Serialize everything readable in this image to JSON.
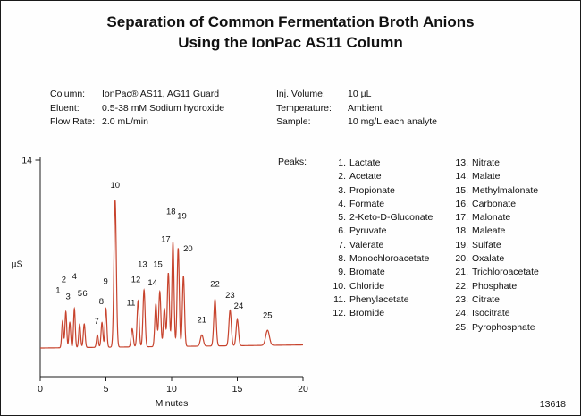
{
  "title": {
    "line1": "Separation of Common Fermentation Broth Anions",
    "line2": "Using the IonPac AS11 Column"
  },
  "conditions": {
    "left": [
      {
        "label": "Column:",
        "value": "IonPac® AS11, AG11 Guard"
      },
      {
        "label": "Eluent:",
        "value": "0.5-38 mM Sodium hydroxide"
      },
      {
        "label": "Flow Rate:",
        "value": "2.0 mL/min"
      }
    ],
    "right": [
      {
        "label": "Inj. Volume:",
        "value": "10 µL"
      },
      {
        "label": "Temperature:",
        "value": "Ambient"
      },
      {
        "label": "Sample:",
        "value": "10 mg/L each analyte"
      }
    ]
  },
  "legend": {
    "heading": "Peaks:"
  },
  "footer": {
    "figure_number": "13618"
  },
  "chart_data": {
    "type": "line",
    "kind": "chromatogram",
    "title": "Separation of Common Fermentation Broth Anions Using the IonPac AS11 Column",
    "xlabel": "Minutes",
    "ylabel": "µS",
    "xlim": [
      0,
      20
    ],
    "ylim": [
      0,
      14
    ],
    "x_ticks": [
      0,
      5,
      10,
      15,
      20
    ],
    "y_ticks": [
      0,
      14
    ],
    "grid": false,
    "trace_color": "#c7432d",
    "baseline": {
      "start_uS": 1.85,
      "slope_uS_per_min": 0.01
    },
    "peaks": [
      {
        "n": 1,
        "name": "Lactate",
        "rt_min": 1.7,
        "apex_uS": 3.6,
        "width_min": 0.065,
        "label_x": 1.35,
        "label_y": 5.4
      },
      {
        "n": 2,
        "name": "Acetate",
        "rt_min": 1.95,
        "apex_uS": 4.2,
        "width_min": 0.065,
        "label_x": 1.8,
        "label_y": 6.1
      },
      {
        "n": 3,
        "name": "Propionate",
        "rt_min": 2.25,
        "apex_uS": 3.5,
        "width_min": 0.065,
        "label_x": 2.12,
        "label_y": 5.0
      },
      {
        "n": 4,
        "name": "Formate",
        "rt_min": 2.6,
        "apex_uS": 4.4,
        "width_min": 0.065,
        "label_x": 2.6,
        "label_y": 6.3
      },
      {
        "n": 5,
        "name": "2-Keto-D-Gluconate",
        "rt_min": 3.0,
        "apex_uS": 3.4,
        "width_min": 0.07,
        "label_x": 3.02,
        "label_y": 5.2
      },
      {
        "n": 6,
        "name": "Pyruvate",
        "rt_min": 3.35,
        "apex_uS": 3.4,
        "width_min": 0.07,
        "label_x": 3.4,
        "label_y": 5.2
      },
      {
        "n": 7,
        "name": "Valerate",
        "rt_min": 4.35,
        "apex_uS": 2.7,
        "width_min": 0.07,
        "label_x": 4.3,
        "label_y": 3.4
      },
      {
        "n": 8,
        "name": "Monochloroacetate",
        "rt_min": 4.7,
        "apex_uS": 3.5,
        "width_min": 0.07,
        "label_x": 4.65,
        "label_y": 4.7
      },
      {
        "n": 9,
        "name": "Bromate",
        "rt_min": 5.0,
        "apex_uS": 4.4,
        "width_min": 0.07,
        "label_x": 4.98,
        "label_y": 6.0
      },
      {
        "n": 10,
        "name": "Chloride",
        "rt_min": 5.7,
        "apex_uS": 11.4,
        "width_min": 0.09,
        "label_x": 5.7,
        "label_y": 12.2
      },
      {
        "n": 11,
        "name": "Phenylacetate",
        "rt_min": 7.0,
        "apex_uS": 3.1,
        "width_min": 0.08,
        "label_x": 6.9,
        "label_y": 4.6
      },
      {
        "n": 12,
        "name": "Bromide",
        "rt_min": 7.45,
        "apex_uS": 4.9,
        "width_min": 0.08,
        "label_x": 7.28,
        "label_y": 6.1
      },
      {
        "n": 13,
        "name": "Nitrate",
        "rt_min": 7.9,
        "apex_uS": 5.6,
        "width_min": 0.08,
        "label_x": 7.78,
        "label_y": 7.1
      },
      {
        "n": 14,
        "name": "Malate",
        "rt_min": 8.8,
        "apex_uS": 4.7,
        "width_min": 0.08,
        "label_x": 8.55,
        "label_y": 5.9
      },
      {
        "n": 15,
        "name": "Methylmalonate",
        "rt_min": 9.1,
        "apex_uS": 5.5,
        "width_min": 0.08,
        "label_x": 8.95,
        "label_y": 7.1
      },
      {
        "n": 16,
        "name": "Carbonate",
        "rt_min": 9.45,
        "apex_uS": 4.4,
        "width_min": 0.08
      },
      {
        "n": 17,
        "name": "Malonate",
        "rt_min": 9.75,
        "apex_uS": 6.7,
        "width_min": 0.08,
        "label_x": 9.55,
        "label_y": 8.7
      },
      {
        "n": 18,
        "name": "Maleate",
        "rt_min": 10.1,
        "apex_uS": 8.7,
        "width_min": 0.08,
        "label_x": 9.95,
        "label_y": 10.5
      },
      {
        "n": 19,
        "name": "Sulfate",
        "rt_min": 10.5,
        "apex_uS": 8.3,
        "width_min": 0.08,
        "label_x": 10.78,
        "label_y": 10.2
      },
      {
        "n": 20,
        "name": "Oxalate",
        "rt_min": 10.9,
        "apex_uS": 6.5,
        "width_min": 0.08,
        "label_x": 11.25,
        "label_y": 8.1
      },
      {
        "n": 21,
        "name": "Trichloroacetate",
        "rt_min": 12.3,
        "apex_uS": 2.7,
        "width_min": 0.11,
        "label_x": 12.3,
        "label_y": 3.5
      },
      {
        "n": 22,
        "name": "Phosphate",
        "rt_min": 13.3,
        "apex_uS": 5.0,
        "width_min": 0.09,
        "label_x": 13.3,
        "label_y": 5.8
      },
      {
        "n": 23,
        "name": "Citrate",
        "rt_min": 14.45,
        "apex_uS": 4.3,
        "width_min": 0.09,
        "label_x": 14.45,
        "label_y": 5.1
      },
      {
        "n": 24,
        "name": "Isocitrate",
        "rt_min": 15.0,
        "apex_uS": 3.7,
        "width_min": 0.09,
        "label_x": 15.1,
        "label_y": 4.4
      },
      {
        "n": 25,
        "name": "Pyrophosphate",
        "rt_min": 17.3,
        "apex_uS": 3.0,
        "width_min": 0.14,
        "label_x": 17.3,
        "label_y": 3.8
      }
    ]
  }
}
